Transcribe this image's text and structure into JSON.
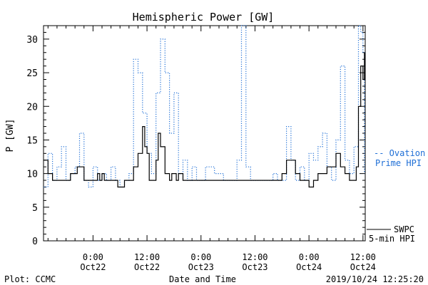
{
  "chart_data": {
    "type": "line",
    "title": "Hemispheric Power [GW]",
    "xlabel": "Date and Time",
    "ylabel": "P [GW]",
    "ylim": [
      0,
      32
    ],
    "xlim": [
      "2019-10-21T13:00",
      "2019-10-24T12:30"
    ],
    "x_ticks": [
      {
        "x": "2019-10-22T00:00",
        "label1": "0:00",
        "label2": "Oct22"
      },
      {
        "x": "2019-10-22T12:00",
        "label1": "12:00",
        "label2": "Oct22"
      },
      {
        "x": "2019-10-23T00:00",
        "label1": "0:00",
        "label2": "Oct23"
      },
      {
        "x": "2019-10-23T12:00",
        "label1": "12:00",
        "label2": "Oct23"
      },
      {
        "x": "2019-10-24T00:00",
        "label1": "0:00",
        "label2": "Oct24"
      },
      {
        "x": "2019-10-24T12:00",
        "label1": "12:00",
        "label2": "Oct24"
      }
    ],
    "y_ticks": [
      0,
      5,
      10,
      15,
      20,
      25,
      30
    ],
    "legend_placement": "right",
    "series": [
      {
        "name": "SWPC 5-min HPI",
        "color": "#000000",
        "style": "solid",
        "x": [
          "2019-10-21T13:00",
          "2019-10-21T13:40",
          "2019-10-21T14:00",
          "2019-10-21T15:00",
          "2019-10-21T16:00",
          "2019-10-21T18:00",
          "2019-10-21T19:00",
          "2019-10-21T20:30",
          "2019-10-21T22:00",
          "2019-10-22T00:00",
          "2019-10-22T01:00",
          "2019-10-22T01:30",
          "2019-10-22T02:00",
          "2019-10-22T02:30",
          "2019-10-22T03:30",
          "2019-10-22T05:00",
          "2019-10-22T05:30",
          "2019-10-22T07:00",
          "2019-10-22T08:00",
          "2019-10-22T09:00",
          "2019-10-22T10:00",
          "2019-10-22T11:00",
          "2019-10-22T11:30",
          "2019-10-22T12:00",
          "2019-10-22T12:30",
          "2019-10-22T13:00",
          "2019-10-22T14:00",
          "2019-10-22T14:30",
          "2019-10-22T15:00",
          "2019-10-22T16:00",
          "2019-10-22T17:00",
          "2019-10-22T17:30",
          "2019-10-22T18:30",
          "2019-10-22T19:00",
          "2019-10-22T20:00",
          "2019-10-22T20:30",
          "2019-10-22T21:30",
          "2019-10-22T22:00",
          "2019-10-23T00:00",
          "2019-10-23T02:00",
          "2019-10-23T04:00",
          "2019-10-23T06:00",
          "2019-10-23T09:00",
          "2019-10-23T12:00",
          "2019-10-23T15:00",
          "2019-10-23T17:00",
          "2019-10-23T18:00",
          "2019-10-23T19:00",
          "2019-10-23T20:00",
          "2019-10-23T21:00",
          "2019-10-23T22:00",
          "2019-10-23T23:00",
          "2019-10-24T00:00",
          "2019-10-24T01:00",
          "2019-10-24T02:00",
          "2019-10-24T03:00",
          "2019-10-24T04:00",
          "2019-10-24T05:00",
          "2019-10-24T06:00",
          "2019-10-24T07:00",
          "2019-10-24T08:00",
          "2019-10-24T09:00",
          "2019-10-24T10:00",
          "2019-10-24T10:30",
          "2019-10-24T11:00",
          "2019-10-24T11:30",
          "2019-10-24T12:00",
          "2019-10-24T12:20"
        ],
        "values": [
          12,
          12,
          10,
          9,
          9,
          9,
          10,
          11,
          9,
          9,
          10,
          9,
          10,
          9,
          9,
          9,
          8,
          9,
          9,
          11,
          13,
          17,
          14,
          13,
          9,
          9,
          12,
          16,
          14,
          10,
          9,
          10,
          9,
          10,
          9,
          9,
          9,
          9,
          9,
          9,
          9,
          9,
          9,
          9,
          9,
          9,
          10,
          12,
          12,
          10,
          9,
          9,
          8,
          9,
          10,
          10,
          11,
          11,
          13,
          11,
          10,
          9,
          9,
          11,
          20,
          26,
          24,
          28
        ]
      },
      {
        "name": "Ovation Prime HPI",
        "color": "#1f6fd6",
        "style": "dotted",
        "x": [
          "2019-10-21T13:00",
          "2019-10-21T14:00",
          "2019-10-21T15:00",
          "2019-10-21T16:00",
          "2019-10-21T17:00",
          "2019-10-21T18:00",
          "2019-10-21T19:00",
          "2019-10-21T20:00",
          "2019-10-21T21:00",
          "2019-10-21T22:00",
          "2019-10-21T23:00",
          "2019-10-22T00:00",
          "2019-10-22T01:00",
          "2019-10-22T02:00",
          "2019-10-22T03:00",
          "2019-10-22T04:00",
          "2019-10-22T05:00",
          "2019-10-22T06:00",
          "2019-10-22T07:00",
          "2019-10-22T08:00",
          "2019-10-22T09:00",
          "2019-10-22T10:00",
          "2019-10-22T11:00",
          "2019-10-22T12:00",
          "2019-10-22T13:00",
          "2019-10-22T14:00",
          "2019-10-22T15:00",
          "2019-10-22T16:00",
          "2019-10-22T17:00",
          "2019-10-22T18:00",
          "2019-10-22T19:00",
          "2019-10-22T20:00",
          "2019-10-22T21:00",
          "2019-10-22T22:00",
          "2019-10-22T23:00",
          "2019-10-23T01:00",
          "2019-10-23T03:00",
          "2019-10-23T05:00",
          "2019-10-23T07:00",
          "2019-10-23T08:00",
          "2019-10-23T09:00",
          "2019-10-23T10:00",
          "2019-10-23T11:00",
          "2019-10-23T13:00",
          "2019-10-23T15:00",
          "2019-10-23T16:00",
          "2019-10-23T17:00",
          "2019-10-23T18:00",
          "2019-10-23T19:00",
          "2019-10-23T20:00",
          "2019-10-23T21:00",
          "2019-10-23T22:00",
          "2019-10-23T23:00",
          "2019-10-24T00:00",
          "2019-10-24T01:00",
          "2019-10-24T02:00",
          "2019-10-24T03:00",
          "2019-10-24T04:00",
          "2019-10-24T05:00",
          "2019-10-24T06:00",
          "2019-10-24T07:00",
          "2019-10-24T08:00",
          "2019-10-24T09:00",
          "2019-10-24T10:00",
          "2019-10-24T11:00",
          "2019-10-24T11:30",
          "2019-10-24T12:00",
          "2019-10-24T12:20"
        ],
        "values": [
          8,
          13,
          9,
          11,
          14,
          9,
          10,
          11,
          16,
          9,
          8,
          11,
          9,
          10,
          9,
          11,
          9,
          8,
          9,
          10,
          27,
          25,
          19,
          13,
          10,
          22,
          30,
          25,
          16,
          22,
          10,
          12,
          9,
          11,
          9,
          11,
          10,
          9,
          9,
          12,
          32,
          11,
          9,
          9,
          9,
          10,
          9,
          9,
          17,
          12,
          9,
          11,
          9,
          13,
          12,
          14,
          16,
          11,
          9,
          15,
          26,
          12,
          10,
          14,
          32,
          31,
          28,
          10
        ]
      }
    ],
    "legend": {
      "ovation_line1": "-- Ovation",
      "ovation_line2": "Prime HPI",
      "swpc_line1": "SWPC",
      "swpc_line2": "5-min HPI"
    },
    "footer": {
      "left": "Plot: CCMC",
      "center": "Date and Time",
      "right": "2019/10/24 12:25:20"
    }
  }
}
